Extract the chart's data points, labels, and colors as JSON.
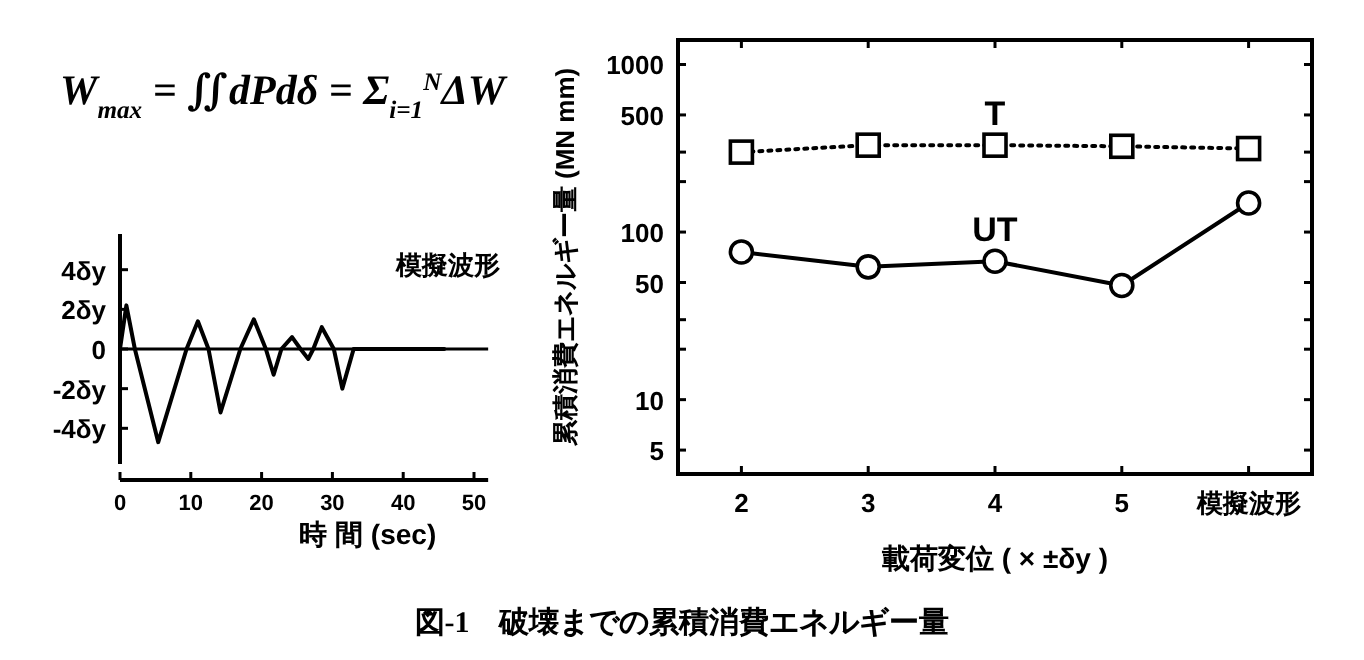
{
  "chart_data": [
    {
      "type": "line",
      "xlabel": "時 間 (sec)",
      "xlim": [
        0,
        52
      ],
      "xticks": [
        0,
        10,
        20,
        30,
        40,
        50
      ],
      "ylim": [
        -5.8,
        5.8
      ],
      "yticks": [
        {
          "value": 4,
          "label": "4δy"
        },
        {
          "value": 2,
          "label": "2δy"
        },
        0,
        {
          "value": -2,
          "label": "-2δy"
        },
        {
          "value": -4,
          "label": "-4δy"
        }
      ],
      "ref_lines": [
        {
          "axis": "y",
          "value": 0
        }
      ],
      "annotations": [
        "W$_{max}$ = ∬dPdδ = Σ$_{i=1}$$^{N}$ΔW",
        "模擬波形"
      ],
      "series": [
        {
          "color": "#000000",
          "x": [
            0,
            0.9,
            2.1,
            5.4,
            9.4,
            11,
            12.5,
            14.2,
            17,
            18.9,
            20.6,
            21.7,
            22.8,
            24.3,
            25.5,
            26.6,
            27.3,
            28.5,
            30.2,
            31.4,
            33,
            45.8
          ],
          "values": [
            0,
            2.2,
            0,
            -4.7,
            0,
            1.4,
            0,
            -3.2,
            0,
            1.5,
            0,
            -1.3,
            0,
            0.6,
            0,
            -0.5,
            0,
            1.1,
            0,
            -2.0,
            0,
            0
          ]
        }
      ]
    },
    {
      "type": "line",
      "categories": [
        "2",
        "3",
        "4",
        "5",
        "模擬波形"
      ],
      "log": true,
      "ylim": [
        3.6,
        1400
      ],
      "yticks": [
        5,
        10,
        {
          "value": 20,
          "label": null
        },
        {
          "value": 30,
          "label": null
        },
        50,
        100,
        {
          "value": 200,
          "label": null
        },
        {
          "value": 300,
          "label": null
        },
        500,
        1000
      ],
      "xlabel": "載荷変位 ( × ±δy )",
      "ylabel": "累積消費エネルギー量 (MN mm)",
      "annotations": [
        "図-1　破壊までの累積消費エネルギー量"
      ],
      "series": [
        {
          "name": "T",
          "color": "#000000",
          "marker": "square",
          "line_style": "dotted",
          "values": [
            300,
            330,
            330,
            325,
            315
          ]
        },
        {
          "name": "UT",
          "color": "#000000",
          "marker": "circle",
          "line_style": "solid",
          "values": [
            76,
            62,
            67,
            48,
            149
          ]
        }
      ]
    }
  ]
}
